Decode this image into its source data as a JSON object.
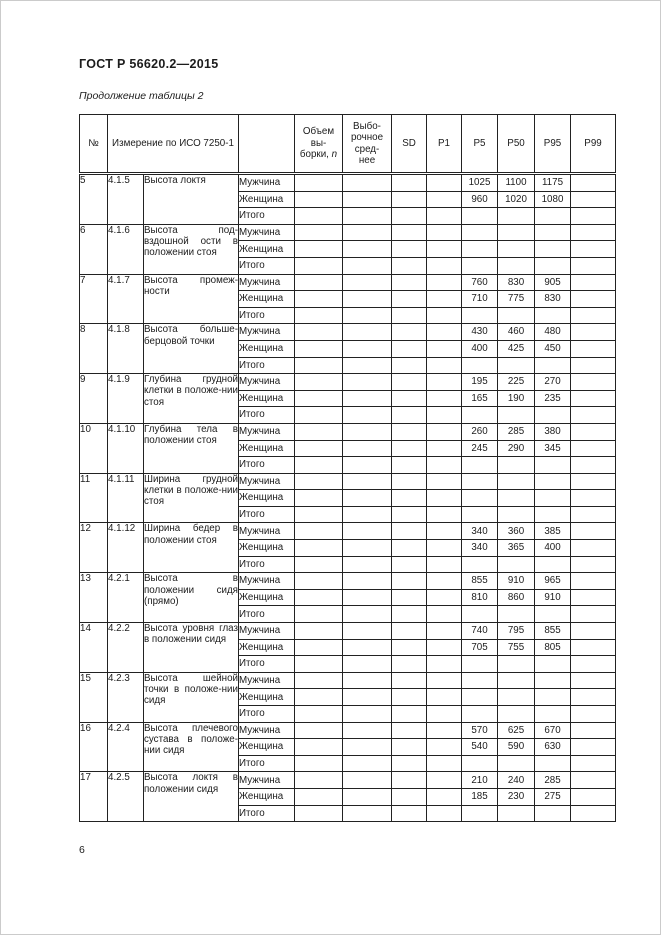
{
  "page": {
    "doc_title": "ГОСТ Р 56620.2—2015",
    "table_caption": "Продолжение таблицы 2",
    "page_number": "6"
  },
  "table": {
    "headers": {
      "num": "№",
      "measurement": "Измерение по ИСО 7250-1",
      "group": "",
      "sample_size": "Объем вы-борки,",
      "sample_size_symbol": "n",
      "sample_mean": "Выбо-рочное сред-нее",
      "sd": "SD",
      "p1": "P1",
      "p5": "P5",
      "p50": "P50",
      "p95": "P95",
      "p99": "P99"
    },
    "value_columns": [
      "n",
      "mean",
      "sd",
      "p1",
      "p5",
      "p50",
      "p95",
      "p99"
    ],
    "row_labels": [
      "Мужчина",
      "Женщина",
      "Итого"
    ],
    "rows": [
      {
        "no": "5",
        "code": "4.1.5",
        "desc": "Высота локтя",
        "values": [
          {
            "p5": "1025",
            "p50": "1100",
            "p95": "1175"
          },
          {
            "p5": "960",
            "p50": "1020",
            "p95": "1080"
          },
          {}
        ]
      },
      {
        "no": "6",
        "code": "4.1.6",
        "desc": "Высота под-вздошной ости в положении стоя",
        "values": [
          {},
          {},
          {}
        ]
      },
      {
        "no": "7",
        "code": "4.1.7",
        "desc": "Высота промеж-ности",
        "values": [
          {
            "p5": "760",
            "p50": "830",
            "p95": "905"
          },
          {
            "p5": "710",
            "p50": "775",
            "p95": "830"
          },
          {}
        ]
      },
      {
        "no": "8",
        "code": "4.1.8",
        "desc": "Высота больше-берцовой точки",
        "values": [
          {
            "p5": "430",
            "p50": "460",
            "p95": "480"
          },
          {
            "p5": "400",
            "p50": "425",
            "p95": "450"
          },
          {}
        ]
      },
      {
        "no": "9",
        "code": "4.1.9",
        "desc": "Глубина грудной клетки в положе-нии стоя",
        "values": [
          {
            "p5": "195",
            "p50": "225",
            "p95": "270"
          },
          {
            "p5": "165",
            "p50": "190",
            "p95": "235"
          },
          {}
        ]
      },
      {
        "no": "10",
        "code": "4.1.10",
        "desc": "Глубина тела в положении стоя",
        "values": [
          {
            "p5": "260",
            "p50": "285",
            "p95": "380"
          },
          {
            "p5": "245",
            "p50": "290",
            "p95": "345"
          },
          {}
        ]
      },
      {
        "no": "11",
        "code": "4.1.11",
        "desc": "Ширина грудной клетки в положе-нии стоя",
        "values": [
          {},
          {},
          {}
        ]
      },
      {
        "no": "12",
        "code": "4.1.12",
        "desc": "Ширина бедер в положении стоя",
        "values": [
          {
            "p5": "340",
            "p50": "360",
            "p95": "385"
          },
          {
            "p5": "340",
            "p50": "365",
            "p95": "400"
          },
          {}
        ]
      },
      {
        "no": "13",
        "code": "4.2.1",
        "desc": "Высота в положении сидя (прямо)",
        "values": [
          {
            "p5": "855",
            "p50": "910",
            "p95": "965"
          },
          {
            "p5": "810",
            "p50": "860",
            "p95": "910"
          },
          {}
        ]
      },
      {
        "no": "14",
        "code": "4.2.2",
        "desc": "Высота уровня глаз в положении сидя",
        "values": [
          {
            "p5": "740",
            "p50": "795",
            "p95": "855"
          },
          {
            "p5": "705",
            "p50": "755",
            "p95": "805"
          },
          {}
        ]
      },
      {
        "no": "15",
        "code": "4.2.3",
        "desc": "Высота шейной точки в положе-нии сидя",
        "values": [
          {},
          {},
          {}
        ]
      },
      {
        "no": "16",
        "code": "4.2.4",
        "desc": "Высота плечевого сустава в положе-нии сидя",
        "values": [
          {
            "p5": "570",
            "p50": "625",
            "p95": "670"
          },
          {
            "p5": "540",
            "p50": "590",
            "p95": "630"
          },
          {}
        ]
      },
      {
        "no": "17",
        "code": "4.2.5",
        "desc": "Высота локтя в положении сидя",
        "values": [
          {
            "p5": "210",
            "p50": "240",
            "p95": "285"
          },
          {
            "p5": "185",
            "p50": "230",
            "p95": "275"
          },
          {}
        ]
      }
    ]
  }
}
